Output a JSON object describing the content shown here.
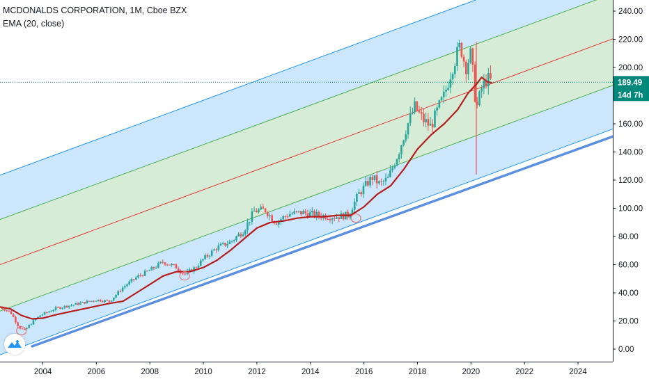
{
  "legend": {
    "title_line": "MCDONALDS CORPORATION, 1M, Cboe BZX",
    "indicator_line": "EMA (20, close)"
  },
  "price_label": {
    "value": "189.49",
    "countdown": "14d 7h",
    "color": "#00897b"
  },
  "colors": {
    "up": "#26a69a",
    "down": "#ef5350",
    "ema": "#b71c1c",
    "channel_outer": "#2196f3",
    "channel_inner": "#4caf50",
    "channel_mid": "#e53935",
    "fill_outer": "#bbdefb",
    "fill_inner": "#c8e6c9",
    "trendline": "#5b8fe0",
    "axis_text": "#131722"
  },
  "chart_data": {
    "type": "candlestick",
    "title": "MCDONALDS CORPORATION, 1M, Cboe BZX",
    "indicator": "EMA (20, close)",
    "y_axis_ticks": [
      "240.00",
      "220.00",
      "200.00",
      "180.00",
      "160.00",
      "140.00",
      "120.00",
      "100.00",
      "80.00",
      "60.00",
      "40.00",
      "20.00",
      "0.00"
    ],
    "x_axis_ticks": [
      "2004",
      "2006",
      "2008",
      "2010",
      "2012",
      "2014",
      "2016",
      "2018",
      "2020",
      "2022",
      "2024"
    ],
    "ylim": [
      -5,
      246
    ],
    "xlim": [
      2002.4,
      2025.3
    ],
    "grid": false,
    "last_price": 189.49,
    "price_path": [
      [
        2002.4,
        30
      ],
      [
        2002.8,
        26
      ],
      [
        2003.1,
        16
      ],
      [
        2003.3,
        13
      ],
      [
        2003.6,
        19
      ],
      [
        2003.9,
        24
      ],
      [
        2004.5,
        29
      ],
      [
        2005.0,
        31
      ],
      [
        2005.5,
        33
      ],
      [
        2006.0,
        35
      ],
      [
        2006.5,
        34
      ],
      [
        2007.0,
        44
      ],
      [
        2007.5,
        51
      ],
      [
        2008.0,
        56
      ],
      [
        2008.5,
        62
      ],
      [
        2009.0,
        58
      ],
      [
        2009.3,
        53
      ],
      [
        2009.7,
        58
      ],
      [
        2010.0,
        64
      ],
      [
        2010.5,
        72
      ],
      [
        2011.0,
        76
      ],
      [
        2011.5,
        84
      ],
      [
        2011.9,
        98
      ],
      [
        2012.3,
        99
      ],
      [
        2012.7,
        90
      ],
      [
        2013.2,
        96
      ],
      [
        2013.7,
        97
      ],
      [
        2014.3,
        95
      ],
      [
        2014.9,
        94
      ],
      [
        2015.4,
        95
      ],
      [
        2015.8,
        110
      ],
      [
        2016.3,
        122
      ],
      [
        2016.6,
        117
      ],
      [
        2016.9,
        121
      ],
      [
        2017.3,
        140
      ],
      [
        2017.6,
        158
      ],
      [
        2017.9,
        172
      ],
      [
        2018.2,
        163
      ],
      [
        2018.5,
        158
      ],
      [
        2018.8,
        172
      ],
      [
        2019.0,
        180
      ],
      [
        2019.3,
        200
      ],
      [
        2019.6,
        216
      ],
      [
        2019.8,
        200
      ],
      [
        2020.0,
        210
      ],
      [
        2020.2,
        170
      ],
      [
        2020.4,
        185
      ],
      [
        2020.6,
        192
      ],
      [
        2020.8,
        189.49
      ]
    ],
    "ema_path": [
      [
        2002.4,
        30
      ],
      [
        2002.8,
        28.5
      ],
      [
        2003.2,
        24
      ],
      [
        2003.6,
        21.5
      ],
      [
        2004.0,
        22
      ],
      [
        2004.5,
        24.5
      ],
      [
        2005.0,
        26.5
      ],
      [
        2005.5,
        28.5
      ],
      [
        2006.0,
        30.5
      ],
      [
        2006.5,
        32.5
      ],
      [
        2007.0,
        34
      ],
      [
        2007.5,
        40
      ],
      [
        2008.0,
        46
      ],
      [
        2008.5,
        52
      ],
      [
        2009.0,
        55
      ],
      [
        2009.5,
        55
      ],
      [
        2010.0,
        58
      ],
      [
        2010.5,
        63
      ],
      [
        2011.0,
        70
      ],
      [
        2011.5,
        78
      ],
      [
        2012.0,
        86
      ],
      [
        2012.5,
        90
      ],
      [
        2013.0,
        91
      ],
      [
        2013.5,
        93
      ],
      [
        2014.0,
        94
      ],
      [
        2014.5,
        94
      ],
      [
        2015.0,
        95
      ],
      [
        2015.5,
        95
      ],
      [
        2016.0,
        101
      ],
      [
        2016.5,
        110
      ],
      [
        2017.0,
        116
      ],
      [
        2017.5,
        128
      ],
      [
        2018.0,
        142
      ],
      [
        2018.5,
        152
      ],
      [
        2019.0,
        160
      ],
      [
        2019.5,
        170
      ],
      [
        2019.9,
        182
      ],
      [
        2020.2,
        188
      ],
      [
        2020.4,
        193
      ],
      [
        2020.6,
        190
      ],
      [
        2020.8,
        189
      ]
    ],
    "regression_channel": {
      "slope_per_year": 7.0,
      "mid_at_2002_4": 60,
      "offsets": [
        63.5,
        32,
        0,
        -33,
        -64
      ]
    },
    "trendline": {
      "points": [
        [
          2003.6,
          2
        ],
        [
          2025.3,
          151
        ]
      ]
    },
    "spike_wicks": [
      {
        "x": 2020.2,
        "high": 218,
        "low": 124
      }
    ],
    "circled_points": [
      [
        2003.2,
        13
      ],
      [
        2009.3,
        52
      ],
      [
        2015.7,
        93
      ]
    ]
  }
}
